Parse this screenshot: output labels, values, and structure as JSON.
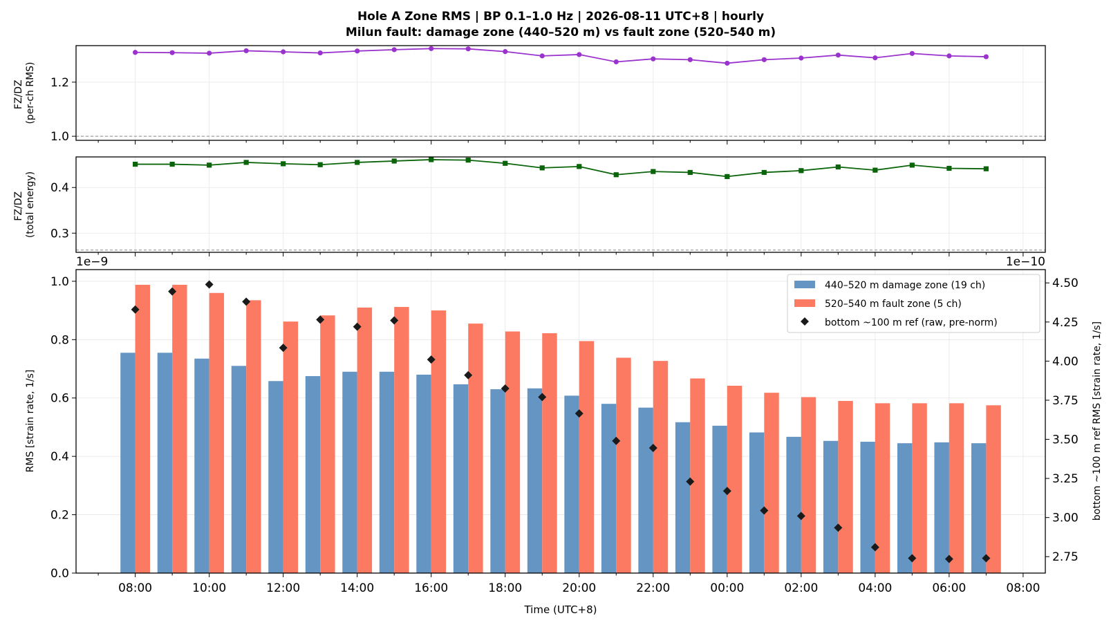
{
  "title": {
    "line1": "Hole A Zone RMS  |  BP 0.1–1.0 Hz  |  2026-08-11 UTC+8  |  hourly",
    "line2": "Milun fault: damage zone (440–520 m) vs fault zone (520–540 m)"
  },
  "colors": {
    "damage": "#6495c3",
    "fault": "#fd7a62",
    "ref": "#1a1a1a",
    "ratio_rms": "#9a32cd",
    "ratio_energy": "#0a640a",
    "refline": "#888888"
  },
  "chart_data": [
    {
      "type": "line",
      "name": "ratio-per-channel",
      "ylabel": "FZ/DZ\n(per-ch RMS)",
      "ylim": [
        0.985,
        1.335
      ],
      "yticks": [
        1.0,
        1.2
      ],
      "ytick_labels": [
        "1.0",
        "1.2"
      ],
      "reference_line": 1.0,
      "grid": true,
      "x": [
        "08:00",
        "09:00",
        "10:00",
        "11:00",
        "12:00",
        "13:00",
        "14:00",
        "15:00",
        "16:00",
        "17:00",
        "18:00",
        "19:00",
        "20:00",
        "21:00",
        "22:00",
        "23:00",
        "00:00",
        "01:00",
        "02:00",
        "03:00",
        "04:00",
        "05:00",
        "06:00",
        "07:00"
      ],
      "values": [
        1.31,
        1.309,
        1.307,
        1.316,
        1.312,
        1.308,
        1.315,
        1.32,
        1.324,
        1.323,
        1.313,
        1.297,
        1.302,
        1.275,
        1.286,
        1.283,
        1.27,
        1.283,
        1.289,
        1.3,
        1.29,
        1.306,
        1.297,
        1.294
      ]
    },
    {
      "type": "line",
      "name": "ratio-total-energy",
      "ylabel": "FZ/DZ\n(total energy)",
      "ylim": [
        0.258,
        0.467
      ],
      "yticks": [
        0.3,
        0.4
      ],
      "ytick_labels": [
        "0.3",
        "0.4"
      ],
      "reference_line": 0.263,
      "grid": true,
      "x": [
        "08:00",
        "09:00",
        "10:00",
        "11:00",
        "12:00",
        "13:00",
        "14:00",
        "15:00",
        "16:00",
        "17:00",
        "18:00",
        "19:00",
        "20:00",
        "21:00",
        "22:00",
        "23:00",
        "00:00",
        "01:00",
        "02:00",
        "03:00",
        "04:00",
        "05:00",
        "06:00",
        "07:00"
      ],
      "values": [
        0.451,
        0.451,
        0.449,
        0.455,
        0.452,
        0.45,
        0.455,
        0.458,
        0.461,
        0.46,
        0.453,
        0.443,
        0.446,
        0.428,
        0.435,
        0.433,
        0.424,
        0.433,
        0.437,
        0.445,
        0.438,
        0.449,
        0.442,
        0.441
      ]
    },
    {
      "type": "bar",
      "name": "zone-rms",
      "xlabel": "Time (UTC+8)",
      "ylabel": "RMS  [strain rate, 1/s]",
      "y2label": "bottom ~100 m ref RMS  [strain rate, 1/s]",
      "ylim": [
        0,
        1.04
      ],
      "y2lim": [
        2.645,
        4.585
      ],
      "yticks": [
        0,
        0.2,
        0.4,
        0.6,
        0.8,
        1.0
      ],
      "ytick_labels": [
        "0.0",
        "0.2",
        "0.4",
        "0.6",
        "0.8",
        "1.0"
      ],
      "y2ticks": [
        2.75,
        3.0,
        3.25,
        3.5,
        3.75,
        4.0,
        4.25,
        4.5
      ],
      "y2tick_labels": [
        "2.75",
        "3.00",
        "3.25",
        "3.50",
        "3.75",
        "4.00",
        "4.25",
        "4.50"
      ],
      "y_offset_text": "1e−9",
      "y2_offset_text": "1e−10",
      "xticks": [
        "08:00",
        "10:00",
        "12:00",
        "14:00",
        "16:00",
        "18:00",
        "20:00",
        "22:00",
        "00:00",
        "02:00",
        "04:00",
        "06:00",
        "08:00"
      ],
      "legend_position": "upper right",
      "grid": true,
      "categories": [
        "08:00",
        "09:00",
        "10:00",
        "11:00",
        "12:00",
        "13:00",
        "14:00",
        "15:00",
        "16:00",
        "17:00",
        "18:00",
        "19:00",
        "20:00",
        "21:00",
        "22:00",
        "23:00",
        "00:00",
        "01:00",
        "02:00",
        "03:00",
        "04:00",
        "05:00",
        "06:00",
        "07:00"
      ],
      "series": [
        {
          "name": "440–520 m  damage zone (19 ch)",
          "type": "bar",
          "values": [
            0.755,
            0.755,
            0.735,
            0.71,
            0.658,
            0.675,
            0.69,
            0.69,
            0.68,
            0.647,
            0.63,
            0.633,
            0.608,
            0.58,
            0.567,
            0.517,
            0.505,
            0.482,
            0.467,
            0.453,
            0.45,
            0.445,
            0.448,
            0.445
          ]
        },
        {
          "name": "520–540 m  fault zone (5 ch)",
          "type": "bar",
          "values": [
            0.988,
            0.988,
            0.96,
            0.935,
            0.862,
            0.883,
            0.91,
            0.912,
            0.9,
            0.855,
            0.828,
            0.822,
            0.795,
            0.738,
            0.727,
            0.667,
            0.642,
            0.618,
            0.603,
            0.59,
            0.582,
            0.582,
            0.582,
            0.575
          ]
        },
        {
          "name": "bottom ~100 m ref (raw, pre-norm)",
          "type": "scatter",
          "axis": "right",
          "values": [
            4.33,
            4.445,
            4.49,
            4.38,
            4.085,
            4.265,
            4.22,
            4.26,
            4.01,
            3.91,
            3.825,
            3.77,
            3.665,
            3.49,
            3.445,
            3.23,
            3.17,
            3.045,
            3.01,
            2.935,
            2.81,
            2.74,
            2.735,
            2.74
          ]
        }
      ]
    }
  ]
}
